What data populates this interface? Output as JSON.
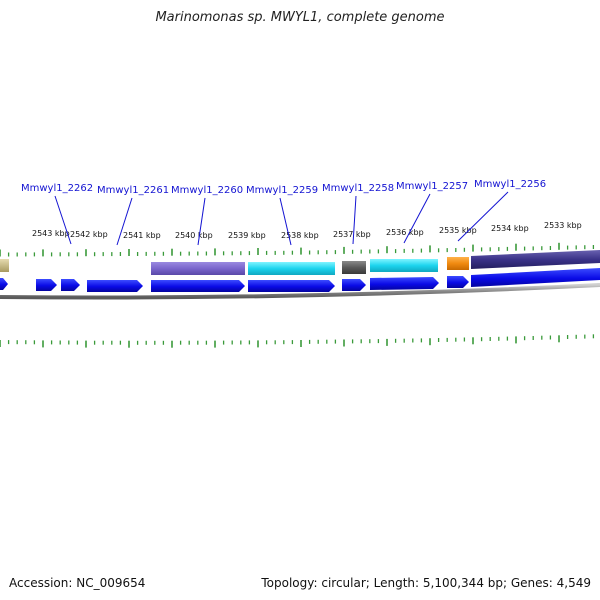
{
  "title": "Marinomonas sp. MWYL1, complete genome",
  "footer": {
    "accession": "Accession: NC_009654",
    "summary": "Topology: circular; Length: 5,100,344 bp; Genes: 4,549"
  },
  "colors": {
    "gene_arrow": "#0a0ae6",
    "gene_label": "#1414d2",
    "tick": "#3a9a3a",
    "backbone": "#8a8a8a"
  },
  "scale_labels": [
    "2543 kbp",
    "2542 kbp",
    "2541 kbp",
    "2540 kbp",
    "2539 kbp",
    "2538 kbp",
    "2537 kbp",
    "2536 kbp",
    "2535 kbp",
    "2534 kbp",
    "2533 kbp"
  ],
  "gene_labels": [
    "Mmwyl1_2262",
    "Mmwyl1_2261",
    "Mmwyl1_2260",
    "Mmwyl1_2259",
    "Mmwyl1_2258",
    "Mmwyl1_2257",
    "Mmwyl1_2256"
  ]
}
